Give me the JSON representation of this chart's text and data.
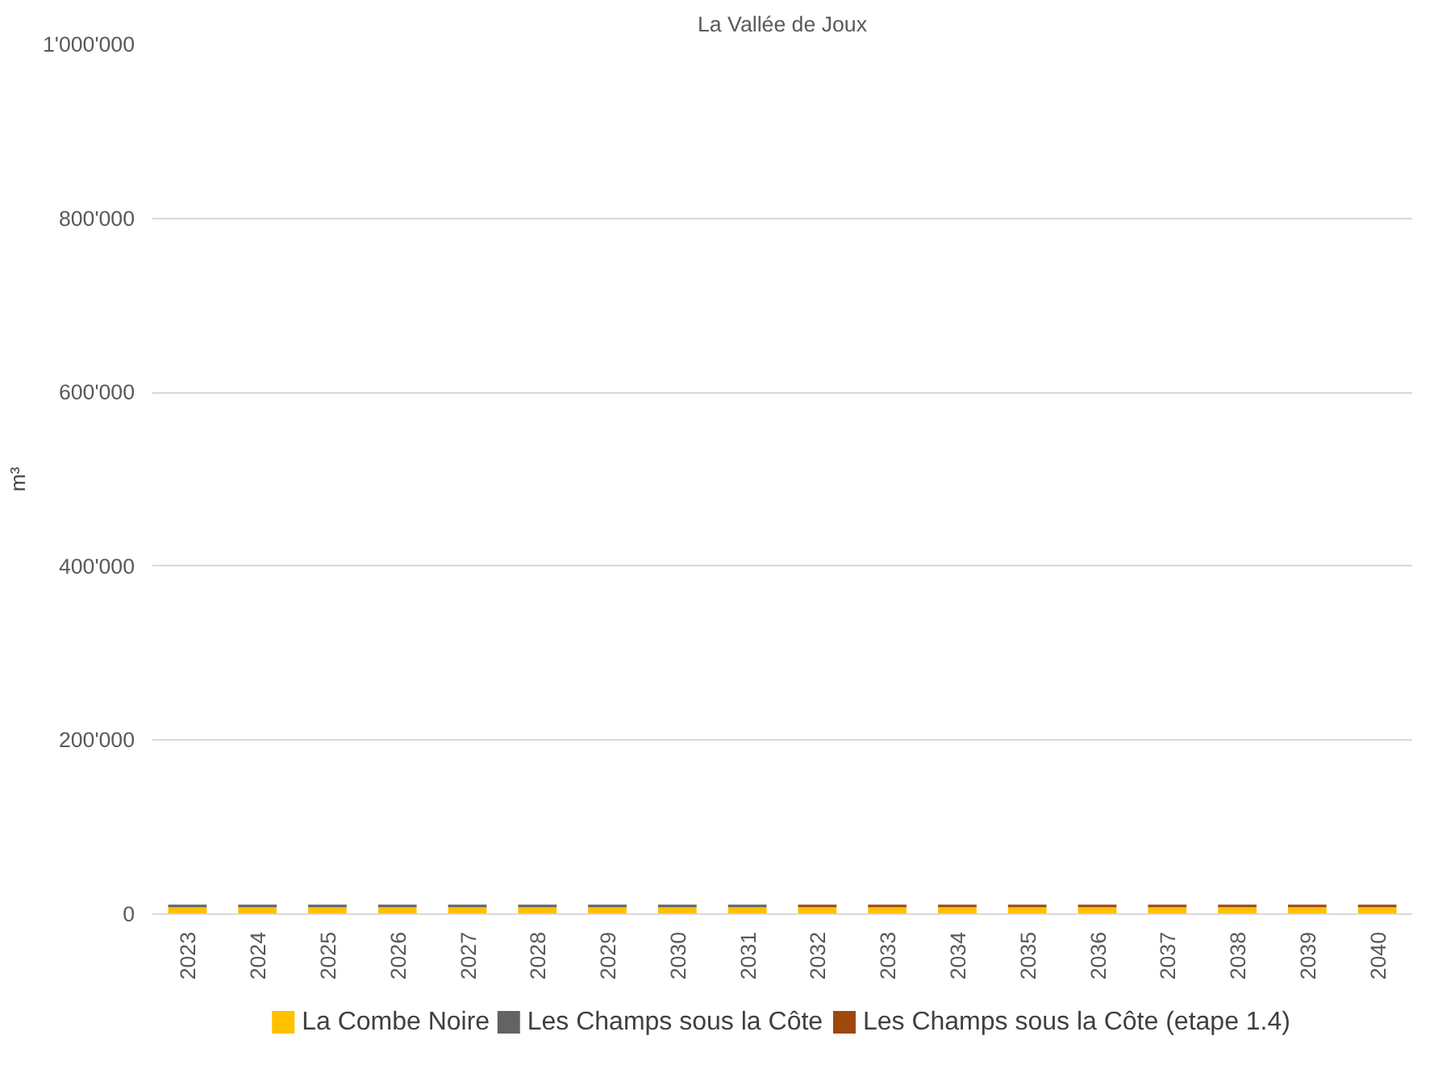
{
  "chart_data": {
    "type": "bar",
    "title": "La Vallée de Joux",
    "ylabel": "m³",
    "stacked": true,
    "categories": [
      "2023",
      "2024",
      "2025",
      "2026",
      "2027",
      "2028",
      "2029",
      "2030",
      "2031",
      "2032",
      "2033",
      "2034",
      "2035",
      "2036",
      "2037",
      "2038",
      "2039",
      "2040"
    ],
    "series": [
      {
        "name": "La Combe Noire",
        "color": "#ffc000",
        "values": [
          8000,
          8000,
          8000,
          8000,
          8000,
          8000,
          8000,
          8000,
          8000,
          8000,
          8000,
          8000,
          8000,
          8000,
          8000,
          8000,
          8000,
          8000
        ]
      },
      {
        "name": "Les Champs sous la Côte",
        "color": "#636363",
        "values": [
          3000,
          3000,
          3000,
          3000,
          3000,
          3000,
          3000,
          3000,
          3000,
          0,
          0,
          0,
          0,
          0,
          0,
          0,
          0,
          0
        ]
      },
      {
        "name": "Les Champs sous la Côte (etape 1.4)",
        "color": "#9e480e",
        "values": [
          0,
          0,
          0,
          0,
          0,
          0,
          0,
          0,
          0,
          3000,
          3000,
          3000,
          3000,
          3000,
          3000,
          3000,
          3000,
          3000
        ]
      }
    ],
    "ylim": [
      0,
      1000000
    ],
    "yticks": [
      {
        "value": 0,
        "label": "0"
      },
      {
        "value": 200000,
        "label": "200'000"
      },
      {
        "value": 400000,
        "label": "400'000"
      },
      {
        "value": 600000,
        "label": "600'000"
      },
      {
        "value": 800000,
        "label": "800'000"
      },
      {
        "value": 1000000,
        "label": "1'000'000"
      }
    ],
    "grid": "y",
    "legend": "bottom"
  }
}
